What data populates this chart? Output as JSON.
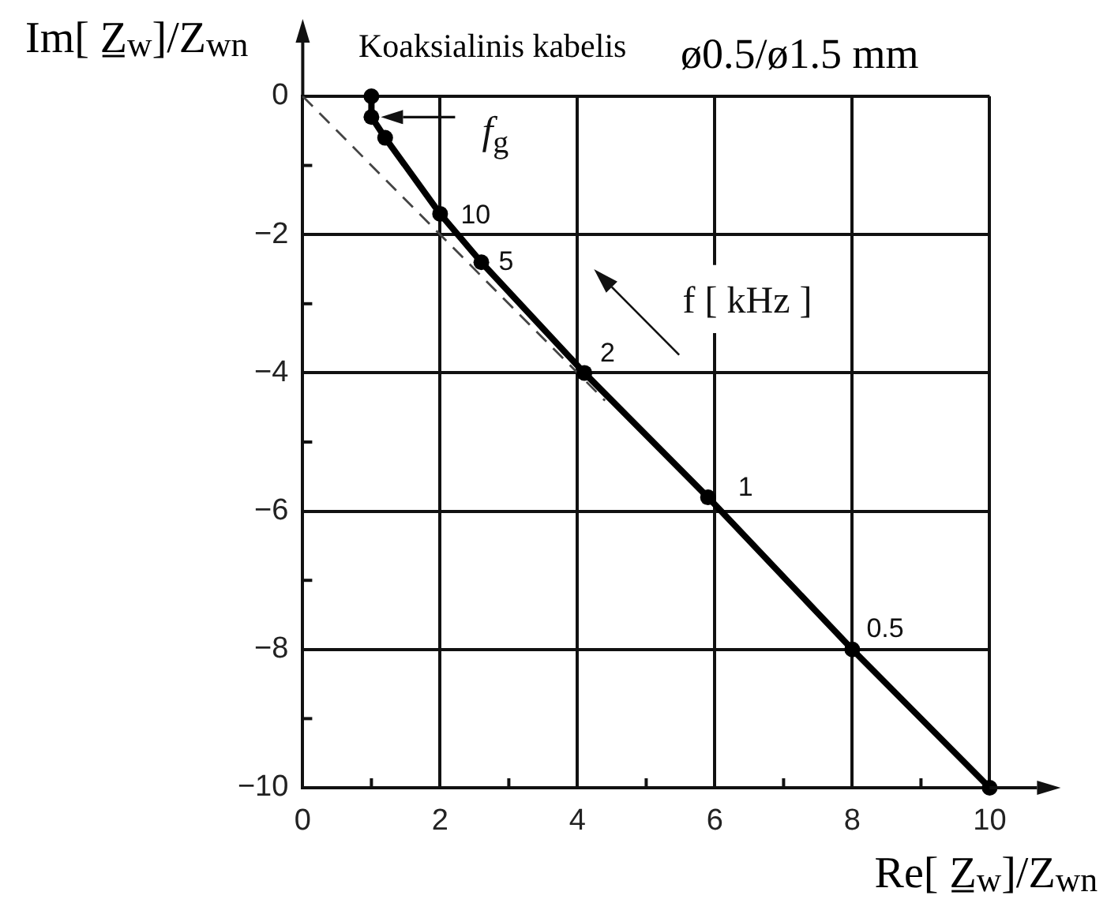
{
  "chart_data": {
    "type": "line",
    "title": "Koaksialinis kabelis",
    "subtitle": "ø0.5/ø1.5 mm",
    "xlabel": "Re[ Z̲$_{w}$]/Z$_{wn}$",
    "ylabel": "Im[ Z̲$_{w}$]/Z$_{wn}$",
    "series": [
      {
        "color": "#000000",
        "marker": "circle",
        "x": [
          1,
          1,
          1.2,
          2,
          2.6,
          4.1,
          5.9,
          8,
          10
        ],
        "values": [
          0,
          -0.3,
          -0.6,
          -1.7,
          -2.4,
          -4,
          -5.8,
          -8,
          -10
        ]
      },
      {
        "color": "#444444",
        "line_style": "dashed",
        "marker": "none",
        "x": [
          0,
          4.4
        ],
        "values": [
          0,
          -4.4
        ]
      }
    ],
    "xlim": [
      0,
      10
    ],
    "ylim": [
      -10,
      0
    ],
    "xticks": [
      0,
      {
        "value": 1,
        "label": null
      },
      2,
      {
        "value": 3,
        "label": null
      },
      4,
      {
        "value": 5,
        "label": null
      },
      6,
      {
        "value": 7,
        "label": null
      },
      8,
      {
        "value": 9,
        "label": null
      },
      10
    ],
    "yticks": [
      {
        "value": -10,
        "label": "−10"
      },
      {
        "value": -9,
        "label": null
      },
      {
        "value": -8,
        "label": "−8"
      },
      {
        "value": -7,
        "label": null
      },
      {
        "value": -6,
        "label": "−6"
      },
      {
        "value": -5,
        "label": null
      },
      {
        "value": -4,
        "label": "−4"
      },
      {
        "value": -3,
        "label": null
      },
      {
        "value": -2,
        "label": "−2"
      },
      {
        "value": -1,
        "label": null
      },
      0
    ],
    "grid": true,
    "annotations": [
      {
        "text": "f$_{g}$",
        "x": 1,
        "y": -0.3
      },
      {
        "text": "10",
        "x": 2,
        "y": -1.7
      },
      {
        "text": "5",
        "x": 2.6,
        "y": -2.4
      },
      {
        "text": "2",
        "x": 4.1,
        "y": -4
      },
      {
        "text": "1",
        "x": 5.9,
        "y": -5.8
      },
      {
        "text": "0.5",
        "x": 8,
        "y": -8
      },
      "f [ kHz ]"
    ]
  }
}
